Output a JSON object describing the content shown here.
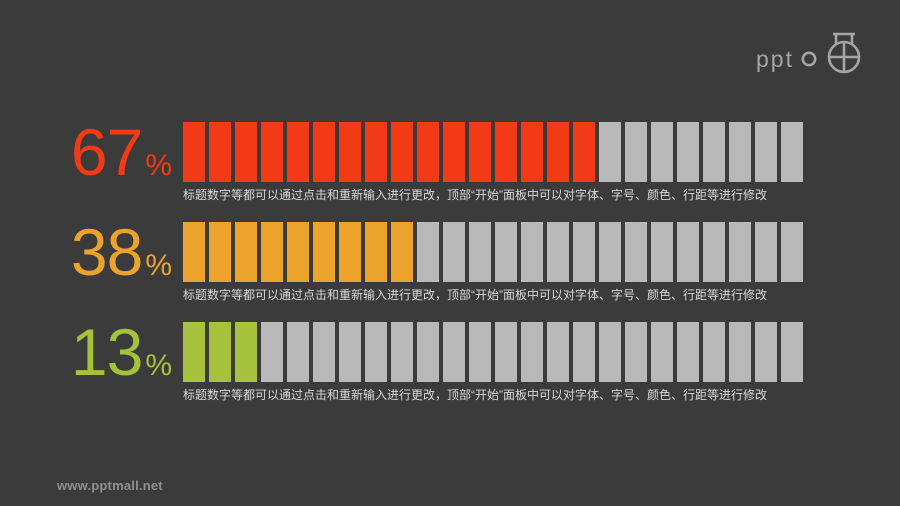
{
  "colors": {
    "background": "#3b3b3b",
    "empty_segment": "#b9b9b9",
    "caption_text": "#d8d8d8",
    "watermark_text": "#8f8f8f",
    "logo": "#a5a5a5"
  },
  "logo": {
    "text": "ppt",
    "emblem": "circle-crosshair-with-crown-icon"
  },
  "watermark": "www.pptmall.net",
  "chart_data": {
    "type": "bar",
    "subtype": "segmented-progress-bars",
    "orientation": "horizontal",
    "total_segments_per_row": 24,
    "unit": "%",
    "values": [
      67,
      38,
      13
    ],
    "series": [
      {
        "name": "row-1",
        "percent": "67",
        "filled_segments": 16,
        "fill_color": "#f23b16"
      },
      {
        "name": "row-2",
        "percent": "38",
        "filled_segments": 9,
        "fill_color": "#eba32c"
      },
      {
        "name": "row-3",
        "percent": "13",
        "filled_segments": 3,
        "fill_color": "#a6c23c"
      }
    ],
    "empty_color": "#b9b9b9",
    "caption": "标题数字等都可以通过点击和重新输入进行更改，顶部“开始”面板中可以对字体、字号、颜色、行距等进行修改",
    "legend": "none",
    "grid": "off"
  }
}
